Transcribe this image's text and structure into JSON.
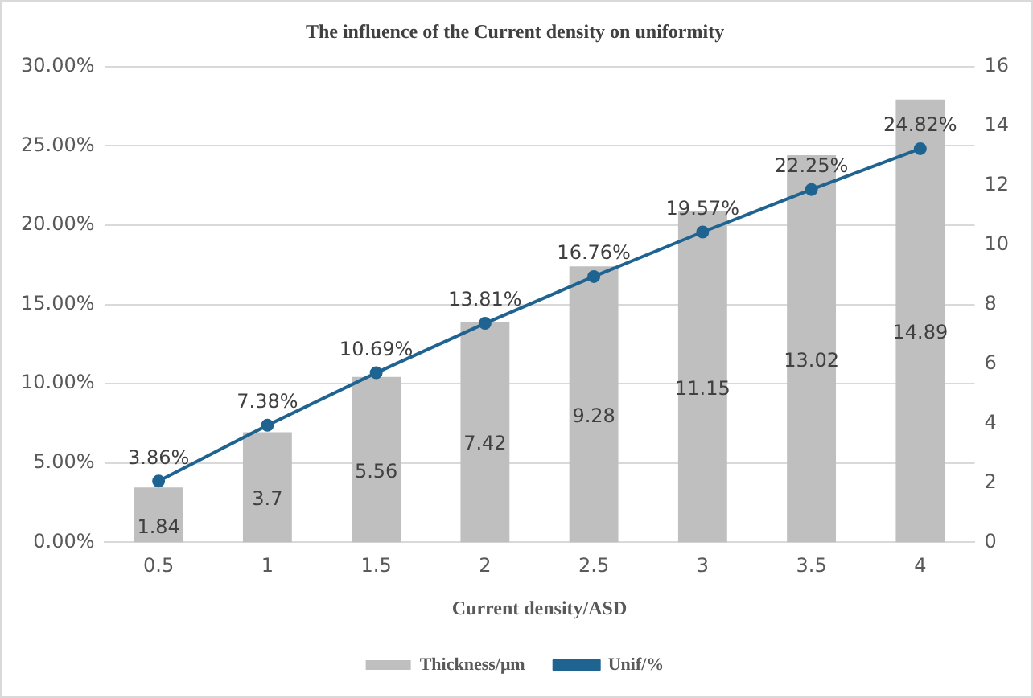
{
  "chart_data": {
    "type": "bar",
    "title": "The influence of the Current density on uniformity",
    "xlabel": "Current density/ASD",
    "categories": [
      "0.5",
      "1",
      "1.5",
      "2",
      "2.5",
      "3",
      "3.5",
      "4"
    ],
    "series": [
      {
        "name": "Thickness/μm",
        "axis": "y2",
        "color": "#bfbfbf",
        "values": [
          1.84,
          3.7,
          5.56,
          7.42,
          9.28,
          11.15,
          13.02,
          14.89
        ],
        "value_labels": [
          "1.84",
          "3.7",
          "5.56",
          "7.42",
          "9.28",
          "11.15",
          "13.02",
          "14.89"
        ]
      },
      {
        "name": "Unif/%",
        "type": "line",
        "color": "#1f6391",
        "values": [
          3.86,
          7.38,
          10.69,
          13.81,
          16.76,
          19.57,
          22.25,
          24.82
        ],
        "value_labels": [
          "3.86%",
          "7.38%",
          "10.69%",
          "13.81%",
          "16.76%",
          "19.57%",
          "22.25%",
          "24.82%"
        ]
      }
    ],
    "ylim": [
      0,
      30
    ],
    "yticks": [
      {
        "value": 0,
        "label": "0.00%"
      },
      {
        "value": 5,
        "label": "5.00%"
      },
      {
        "value": 10,
        "label": "10.00%"
      },
      {
        "value": 15,
        "label": "15.00%"
      },
      {
        "value": 20,
        "label": "20.00%"
      },
      {
        "value": 25,
        "label": "25.00%"
      },
      {
        "value": 30,
        "label": "30.00%"
      }
    ],
    "y2lim": [
      0,
      16
    ],
    "y2ticks": [
      0,
      2,
      4,
      6,
      8,
      10,
      12,
      14,
      16
    ],
    "grid": "y",
    "legend": "bottom",
    "marker": "circle",
    "line_style": "solid"
  }
}
